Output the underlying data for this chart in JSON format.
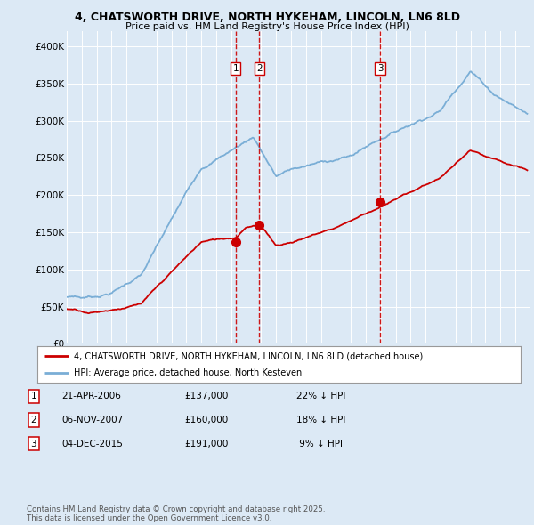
{
  "title_line1": "4, CHATSWORTH DRIVE, NORTH HYKEHAM, LINCOLN, LN6 8LD",
  "title_line2": "Price paid vs. HM Land Registry's House Price Index (HPI)",
  "ylim": [
    0,
    420000
  ],
  "yticks": [
    0,
    50000,
    100000,
    150000,
    200000,
    250000,
    300000,
    350000,
    400000
  ],
  "ytick_labels": [
    "£0",
    "£50K",
    "£100K",
    "£150K",
    "£200K",
    "£250K",
    "£300K",
    "£350K",
    "£400K"
  ],
  "background_color": "#dce9f5",
  "plot_bg_color": "#dce9f5",
  "grid_color": "#ffffff",
  "red_line_color": "#cc0000",
  "blue_line_color": "#7aaed6",
  "sale_marker_color": "#cc0000",
  "dashed_line_color": "#cc0000",
  "legend_line1": "4, CHATSWORTH DRIVE, NORTH HYKEHAM, LINCOLN, LN6 8LD (detached house)",
  "legend_line2": "HPI: Average price, detached house, North Kesteven",
  "footnote": "Contains HM Land Registry data © Crown copyright and database right 2025.\nThis data is licensed under the Open Government Licence v3.0.",
  "x_start_year": 1995,
  "x_end_year": 2026
}
